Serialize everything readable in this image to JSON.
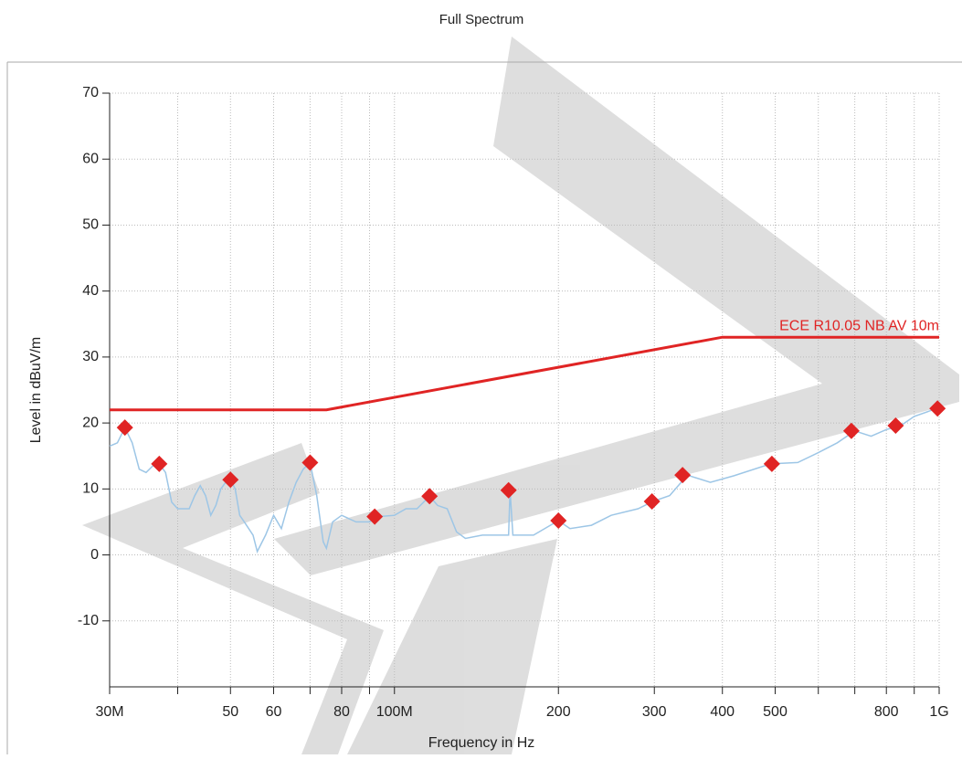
{
  "chart_data": {
    "type": "line",
    "title": "Full Spectrum",
    "x_label": "Frequency in Hz",
    "y_label": "Level in dBuV/m",
    "x_scale": "log",
    "grid": true,
    "xlim": [
      30000000.0,
      1000000000.0
    ],
    "ylim": [
      -20,
      70
    ],
    "xticks": [
      {
        "value": 30000000.0,
        "label": "30M"
      },
      {
        "value": 50000000.0,
        "label": "50"
      },
      {
        "value": 60000000.0,
        "label": "60"
      },
      {
        "value": 80000000.0,
        "label": "80"
      },
      {
        "value": 100000000.0,
        "label": "100M"
      },
      {
        "value": 200000000.0,
        "label": "200"
      },
      {
        "value": 300000000.0,
        "label": "300"
      },
      {
        "value": 400000000.0,
        "label": "400"
      },
      {
        "value": 500000000.0,
        "label": "500"
      },
      {
        "value": 800000000.0,
        "label": "800"
      },
      {
        "value": 1000000000.0,
        "label": "1G"
      }
    ],
    "x_minor_ticks": [
      40000000.0,
      70000000.0,
      90000000.0,
      600000000.0,
      700000000.0,
      900000000.0
    ],
    "yticks": [
      -10,
      0,
      10,
      20,
      30,
      40,
      50,
      60,
      70
    ],
    "series": [
      {
        "style": "line",
        "color": "#9dc6e6",
        "x": [
          30000000.0,
          31000000.0,
          32000000.0,
          33000000.0,
          34000000.0,
          35000000.0,
          36000000.0,
          37000000.0,
          38000000.0,
          39000000.0,
          40000000.0,
          42000000.0,
          43000000.0,
          44000000.0,
          45000000.0,
          46000000.0,
          47000000.0,
          48000000.0,
          49000000.0,
          50000000.0,
          51000000.0,
          52000000.0,
          53000000.0,
          55000000.0,
          56000000.0,
          58000000.0,
          60000000.0,
          62000000.0,
          64000000.0,
          66000000.0,
          68000000.0,
          70000000.0,
          72000000.0,
          74000000.0,
          75000000.0,
          77000000.0,
          80000000.0,
          85000000.0,
          90000000.0,
          93000000.0,
          100000000.0,
          105000000.0,
          110000000.0,
          116000000.0,
          120000000.0,
          125000000.0,
          130000000.0,
          135000000.0,
          145000000.0,
          160000000.0,
          162000000.0,
          163000000.0,
          165000000.0,
          180000000.0,
          200000000.0,
          210000000.0,
          230000000.0,
          250000000.0,
          280000000.0,
          298000000.0,
          320000000.0,
          345000000.0,
          380000000.0,
          420000000.0,
          490000000.0,
          550000000.0,
          600000000.0,
          650000000.0,
          700000000.0,
          750000000.0,
          800000000.0,
          850000000.0,
          900000000.0,
          990000000.0,
          1000000000.0
        ],
        "values": [
          16.5,
          17,
          19.3,
          17,
          13,
          12.5,
          13.5,
          13.8,
          12.5,
          8,
          7,
          7,
          9,
          10.5,
          9,
          6,
          7.5,
          10,
          11,
          11.4,
          10,
          6,
          5,
          3,
          0.5,
          3,
          6,
          4,
          8,
          11,
          13,
          14,
          9,
          2,
          1,
          5,
          6,
          5,
          5,
          5.8,
          6,
          7,
          7,
          8.9,
          7.5,
          7,
          3.5,
          2.5,
          3,
          3,
          3,
          9.8,
          3,
          3,
          5.2,
          4,
          4.5,
          6,
          7,
          8.1,
          9,
          12.1,
          11,
          12,
          13.8,
          14,
          15.5,
          17,
          18.8,
          18,
          19,
          19.6,
          21,
          22.2,
          22
        ]
      },
      {
        "name": "ECE R10.05 NB AV 10m",
        "style": "line",
        "color": "#e02424",
        "x": [
          30000000.0,
          75000000.0,
          400000000.0,
          1000000000.0
        ],
        "values": [
          22,
          22,
          33,
          33
        ]
      },
      {
        "style": "markers",
        "color": "#e02424",
        "x": [
          32000000.0,
          37000000.0,
          50000000.0,
          70000000.0,
          92000000.0,
          116000000.0,
          162000000.0,
          200000000.0,
          297000000.0,
          338000000.0,
          493000000.0,
          690000000.0,
          832000000.0,
          993000000.0
        ],
        "values": [
          19.3,
          13.8,
          11.4,
          14,
          5.8,
          8.9,
          9.8,
          5.2,
          8.1,
          12.1,
          13.8,
          18.8,
          19.6,
          22.2
        ]
      }
    ]
  }
}
